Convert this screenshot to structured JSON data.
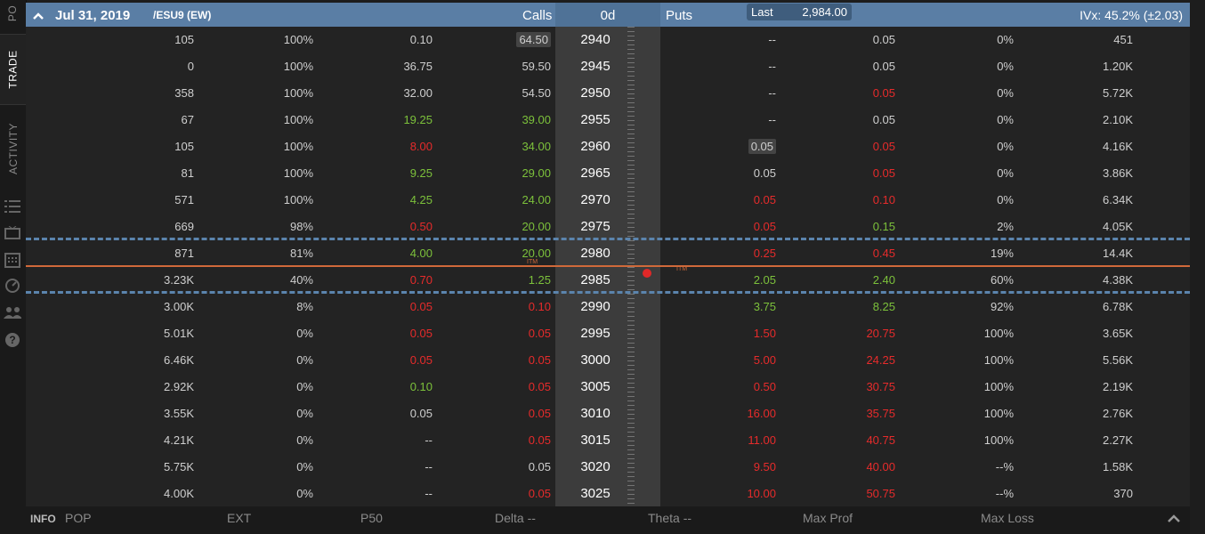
{
  "sidebar": {
    "tabs": [
      "PO",
      "TRADE",
      "ACTIVITY"
    ],
    "icons": [
      "list-icon",
      "tv-icon",
      "calendar-icon",
      "gauge-icon",
      "people-icon",
      "help-icon"
    ]
  },
  "header": {
    "date": "Jul 31, 2019",
    "symbol": "/ESU9 (EW)",
    "calls_label": "Calls",
    "strike_label": "0d",
    "puts_label": "Puts",
    "last_label": "Last",
    "last_value": "2,984.00",
    "ivx": "IVx: 45.2% (±2.03)"
  },
  "rows": [
    {
      "c1": "105",
      "c2": "100%",
      "c3": "0.10",
      "c4": "64.50",
      "strike": "2940",
      "p1": "--",
      "p2": "0.05",
      "p3": "0%",
      "p4": "451"
    },
    {
      "c1": "0",
      "c2": "100%",
      "c3": "36.75",
      "c4": "59.50",
      "strike": "2945",
      "p1": "--",
      "p2": "0.05",
      "p3": "0%",
      "p4": "1.20K"
    },
    {
      "c1": "358",
      "c2": "100%",
      "c3": "32.00",
      "c4": "54.50",
      "strike": "2950",
      "p1": "--",
      "p2": "0.05",
      "p3": "0%",
      "p4": "5.72K"
    },
    {
      "c1": "67",
      "c2": "100%",
      "c3": "19.25",
      "c4": "39.00",
      "strike": "2955",
      "p1": "--",
      "p2": "0.05",
      "p3": "0%",
      "p4": "2.10K"
    },
    {
      "c1": "105",
      "c2": "100%",
      "c3": "8.00",
      "c4": "34.00",
      "strike": "2960",
      "p1": "0.05",
      "p2": "0.05",
      "p3": "0%",
      "p4": "4.16K"
    },
    {
      "c1": "81",
      "c2": "100%",
      "c3": "9.25",
      "c4": "29.00",
      "strike": "2965",
      "p1": "0.05",
      "p2": "0.05",
      "p3": "0%",
      "p4": "3.86K"
    },
    {
      "c1": "571",
      "c2": "100%",
      "c3": "4.25",
      "c4": "24.00",
      "strike": "2970",
      "p1": "0.05",
      "p2": "0.10",
      "p3": "0%",
      "p4": "6.34K"
    },
    {
      "c1": "669",
      "c2": "98%",
      "c3": "0.50",
      "c4": "20.00",
      "strike": "2975",
      "p1": "0.05",
      "p2": "0.15",
      "p3": "2%",
      "p4": "4.05K"
    },
    {
      "c1": "871",
      "c2": "81%",
      "c3": "4.00",
      "c4": "20.00",
      "strike": "2980",
      "p1": "0.25",
      "p2": "0.45",
      "p3": "19%",
      "p4": "14.4K"
    },
    {
      "c1": "3.23K",
      "c2": "40%",
      "c3": "0.70",
      "c4": "1.25",
      "strike": "2985",
      "p1": "2.05",
      "p2": "2.40",
      "p3": "60%",
      "p4": "4.38K"
    },
    {
      "c1": "3.00K",
      "c2": "8%",
      "c3": "0.05",
      "c4": "0.10",
      "strike": "2990",
      "p1": "3.75",
      "p2": "8.25",
      "p3": "92%",
      "p4": "6.78K"
    },
    {
      "c1": "5.01K",
      "c2": "0%",
      "c3": "0.05",
      "c4": "0.05",
      "strike": "2995",
      "p1": "1.50",
      "p2": "20.75",
      "p3": "100%",
      "p4": "3.65K"
    },
    {
      "c1": "6.46K",
      "c2": "0%",
      "c3": "0.05",
      "c4": "0.05",
      "strike": "3000",
      "p1": "5.00",
      "p2": "24.25",
      "p3": "100%",
      "p4": "5.56K"
    },
    {
      "c1": "2.92K",
      "c2": "0%",
      "c3": "0.10",
      "c4": "0.05",
      "strike": "3005",
      "p1": "0.50",
      "p2": "30.75",
      "p3": "100%",
      "p4": "2.19K"
    },
    {
      "c1": "3.55K",
      "c2": "0%",
      "c3": "0.05",
      "c4": "0.05",
      "strike": "3010",
      "p1": "16.00",
      "p2": "35.75",
      "p3": "100%",
      "p4": "2.76K"
    },
    {
      "c1": "4.21K",
      "c2": "0%",
      "c3": "--",
      "c4": "0.05",
      "strike": "3015",
      "p1": "11.00",
      "p2": "40.75",
      "p3": "100%",
      "p4": "2.27K"
    },
    {
      "c1": "5.75K",
      "c2": "0%",
      "c3": "--",
      "c4": "0.05",
      "strike": "3020",
      "p1": "9.50",
      "p2": "40.00",
      "p3": "--%",
      "p4": "1.58K"
    },
    {
      "c1": "4.00K",
      "c2": "0%",
      "c3": "--",
      "c4": "0.05",
      "strike": "3025",
      "p1": "10.00",
      "p2": "50.75",
      "p3": "--%",
      "p4": "370"
    }
  ],
  "itm_label": "ITM",
  "footer": {
    "info": "INFO",
    "pop": "POP",
    "ext": "EXT",
    "p50": "P50",
    "delta": "Delta --",
    "theta": "Theta --",
    "max_prof": "Max Prof",
    "max_loss": "Max Loss"
  },
  "colors": {
    "green": "#7cc13b",
    "red": "#e62b2b",
    "header": "#5a7ea5",
    "itm_line": "#d0693a",
    "dash": "#5b84ad"
  }
}
